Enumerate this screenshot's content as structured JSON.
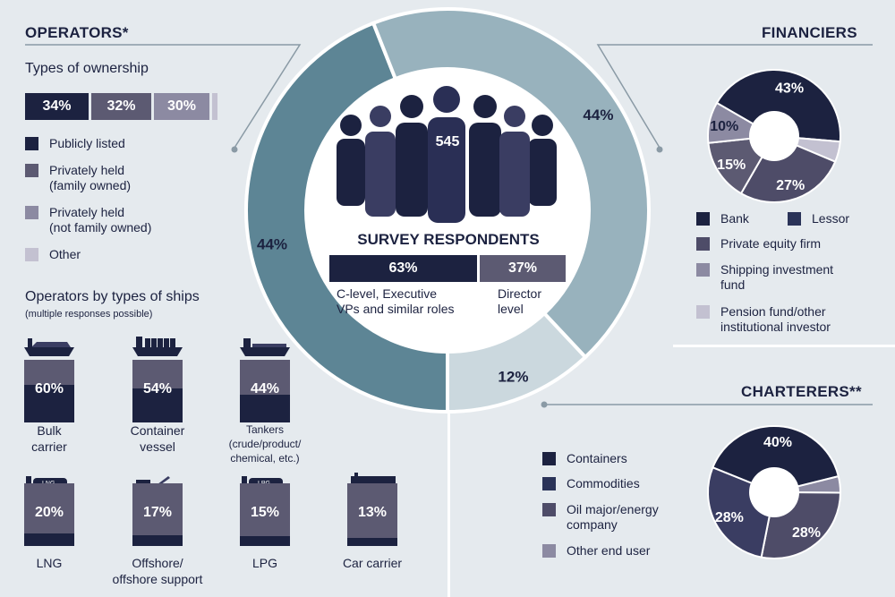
{
  "operators": {
    "title": "OPERATORS*",
    "ownership_title": "Types of ownership",
    "ownership_bar": [
      {
        "label": "34%",
        "value": 34,
        "color": "#1c2240"
      },
      {
        "label": "32%",
        "value": 32,
        "color": "#5c5a72"
      },
      {
        "label": "30%",
        "value": 30,
        "color": "#8c8aa2"
      },
      {
        "label": "",
        "value": 4,
        "color": "#c3c1d1"
      }
    ],
    "legend": [
      {
        "label": "Publicly listed",
        "color": "#1c2240"
      },
      {
        "label": "Privately held\n(family owned)",
        "color": "#5c5a72"
      },
      {
        "label": "Privately held\n(not family owned)",
        "color": "#8c8aa2"
      },
      {
        "label": "Other",
        "color": "#c3c1d1"
      }
    ],
    "ships_title": "Operators by types of ships",
    "ships_note": "(multiple responses possible)",
    "ships": [
      {
        "label": "Bulk\ncarrier",
        "pct_label": "60%",
        "value": 60,
        "icon": "bulk-carrier-icon"
      },
      {
        "label": "Container\nvessel",
        "pct_label": "54%",
        "value": 54,
        "icon": "container-ship-icon"
      },
      {
        "label": "Tankers\n(crude/product/\nchemical, etc.)",
        "pct_label": "44%",
        "value": 44,
        "icon": "tanker-icon"
      },
      {
        "label": "LNG",
        "pct_label": "20%",
        "value": 20,
        "icon": "lng-ship-icon",
        "icon_text": "LNG"
      },
      {
        "label": "Offshore/\noffshore support",
        "pct_label": "17%",
        "value": 17,
        "icon": "offshore-ship-icon"
      },
      {
        "label": "LPG",
        "pct_label": "15%",
        "value": 15,
        "icon": "lpg-ship-icon",
        "icon_text": "LPG"
      },
      {
        "label": "Car carrier",
        "pct_label": "13%",
        "value": 13,
        "icon": "car-carrier-icon"
      }
    ]
  },
  "center": {
    "respondents": "545",
    "title": "SURVEY RESPONDENTS",
    "levels": [
      {
        "pct": "63%",
        "value": 63,
        "label": "C-level, Executive\nVPs and similar roles",
        "color": "#1c2240"
      },
      {
        "pct": "37%",
        "value": 37,
        "label": "Director\nlevel",
        "color": "#5c5a72"
      }
    ],
    "ring": [
      {
        "label": "44%",
        "value": 44,
        "group": "Operators",
        "color": "#5d8595"
      },
      {
        "label": "44%",
        "value": 44,
        "group": "Financiers",
        "color": "#98b2bd"
      },
      {
        "label": "12%",
        "value": 12,
        "group": "Charterers",
        "color": "#cbd8de"
      }
    ]
  },
  "financiers": {
    "title": "FINANCIERS",
    "legend": [
      {
        "label": "Bank",
        "color": "#1c2240"
      },
      {
        "label": "Lessor",
        "color": "#2a3358"
      },
      {
        "label": "Private equity firm",
        "color": "#4e4c68"
      },
      {
        "label": "Shipping investment\nfund",
        "color": "#8c8aa2"
      },
      {
        "label": "Pension fund/other\ninstitutional investor",
        "color": "#c3c1d1"
      }
    ]
  },
  "charterers": {
    "title": "CHARTERERS**",
    "legend": [
      {
        "label": "Containers",
        "color": "#1c2240"
      },
      {
        "label": "Commodities",
        "color": "#2a3358"
      },
      {
        "label": "Oil major/energy\ncompany",
        "color": "#4e4c68"
      },
      {
        "label": "Other end user",
        "color": "#8c8aa2"
      }
    ]
  },
  "chart_data": [
    {
      "type": "pie",
      "title": "Survey respondents",
      "categories": [
        "Operators",
        "Financiers",
        "Charterers"
      ],
      "values": [
        44,
        44,
        12
      ],
      "labels": [
        "44%",
        "44%",
        "12%"
      ]
    },
    {
      "type": "bar",
      "title": "Types of ownership",
      "categories": [
        "Publicly listed",
        "Privately held (family owned)",
        "Privately held (not family owned)",
        "Other"
      ],
      "values": [
        34,
        32,
        30,
        4
      ],
      "labels": [
        "34%",
        "32%",
        "30%",
        ""
      ]
    },
    {
      "type": "bar",
      "title": "Operators by types of ships",
      "categories": [
        "Bulk carrier",
        "Container vessel",
        "Tankers (crude/product/chemical, etc.)",
        "LNG",
        "Offshore/offshore support",
        "LPG",
        "Car carrier"
      ],
      "values": [
        60,
        54,
        44,
        20,
        17,
        15,
        13
      ],
      "labels": [
        "60%",
        "54%",
        "44%",
        "20%",
        "17%",
        "15%",
        "13%"
      ]
    },
    {
      "type": "pie",
      "title": "FINANCIERS",
      "categories": [
        "Bank",
        "Lessor",
        "Private equity firm",
        "Shipping investment fund",
        "Pension fund/other institutional investor"
      ],
      "values": [
        43,
        5,
        27,
        15,
        10
      ],
      "labels": [
        "43%",
        "",
        "27%",
        "15%",
        "10%"
      ],
      "colors": [
        "#1c2240",
        "#c3c1d1",
        "#4e4c68",
        "#5c5a72",
        "#8c8aa2"
      ]
    },
    {
      "type": "pie",
      "title": "CHARTERERS**",
      "categories": [
        "Containers",
        "Other end user",
        "Commodities",
        "Oil major/energy company"
      ],
      "values": [
        40,
        4,
        28,
        28
      ],
      "labels": [
        "40%",
        "",
        "28%",
        "28%"
      ],
      "colors": [
        "#1c2240",
        "#8c8aa2",
        "#4e4c68",
        "#3a3d62"
      ]
    },
    {
      "type": "bar",
      "title": "Respondent level",
      "categories": [
        "C-level, Executive VPs and similar roles",
        "Director level"
      ],
      "values": [
        63,
        37
      ],
      "labels": [
        "63%",
        "37%"
      ]
    }
  ]
}
